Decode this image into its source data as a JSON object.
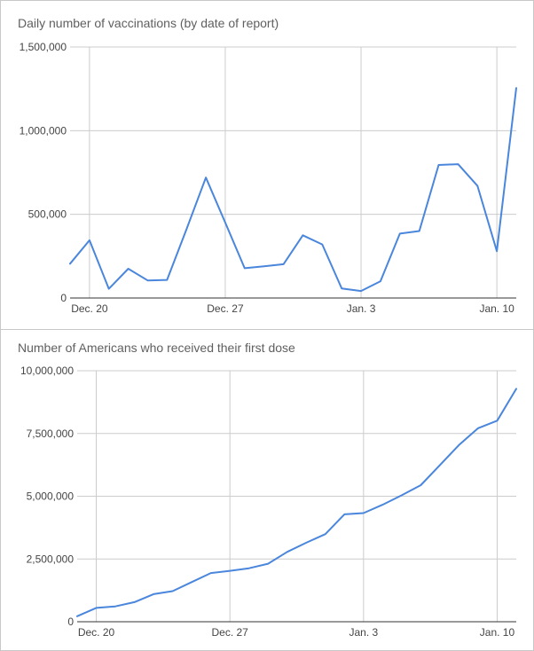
{
  "colors": {
    "series": "#4a86dc",
    "grid": "#cccccc",
    "baseline": "#333333"
  },
  "chart_data": [
    {
      "type": "line",
      "title": "Daily number of vaccinations (by date of report)",
      "xlabel": "",
      "ylabel": "",
      "x": [
        "Dec. 19",
        "Dec. 20",
        "Dec. 21",
        "Dec. 22",
        "Dec. 23",
        "Dec. 24",
        "Dec. 25",
        "Dec. 26",
        "Dec. 27",
        "Dec. 28",
        "Dec. 29",
        "Dec. 30",
        "Dec. 31",
        "Jan. 1",
        "Jan. 2",
        "Jan. 3",
        "Jan. 4",
        "Jan. 5",
        "Jan. 6",
        "Jan. 7",
        "Jan. 8",
        "Jan. 9",
        "Jan. 10",
        "Jan. 11"
      ],
      "y": [
        205000,
        345000,
        55000,
        175000,
        105000,
        108000,
        410000,
        720000,
        450000,
        178000,
        190000,
        202000,
        375000,
        320000,
        57000,
        42000,
        100000,
        385000,
        400000,
        795000,
        800000,
        670000,
        280000,
        1255000
      ],
      "x_ticks": [
        "Dec. 20",
        "Dec. 27",
        "Jan. 3",
        "Jan. 10"
      ],
      "y_ticks": [
        0,
        500000,
        1000000,
        1500000
      ],
      "y_tick_labels": [
        "0",
        "500,000",
        "1,000,000",
        "1,500,000"
      ],
      "ylim": [
        0,
        1500000
      ],
      "grid": true,
      "legend": "none"
    },
    {
      "type": "line",
      "title": "Number of Americans who received their first dose",
      "xlabel": "",
      "ylabel": "",
      "x": [
        "Dec. 19",
        "Dec. 20",
        "Dec. 21",
        "Dec. 22",
        "Dec. 23",
        "Dec. 24",
        "Dec. 25",
        "Dec. 26",
        "Dec. 27",
        "Dec. 28",
        "Dec. 29",
        "Dec. 30",
        "Dec. 31",
        "Jan. 1",
        "Jan. 2",
        "Jan. 3",
        "Jan. 4",
        "Jan. 5",
        "Jan. 6",
        "Jan. 7",
        "Jan. 8",
        "Jan. 9",
        "Jan. 10",
        "Jan. 11"
      ],
      "y": [
        220000,
        550000,
        610000,
        780000,
        1100000,
        1220000,
        1580000,
        1940000,
        2030000,
        2130000,
        2310000,
        2780000,
        3150000,
        3490000,
        4280000,
        4330000,
        4660000,
        5040000,
        5440000,
        6240000,
        7040000,
        7710000,
        8010000,
        9280000
      ],
      "x_ticks": [
        "Dec. 20",
        "Dec. 27",
        "Jan. 3",
        "Jan. 10"
      ],
      "y_ticks": [
        0,
        2500000,
        5000000,
        7500000,
        10000000
      ],
      "y_tick_labels": [
        "0",
        "2,500,000",
        "5,000,000",
        "7,500,000",
        "10,000,000"
      ],
      "ylim": [
        0,
        10000000
      ],
      "grid": true,
      "legend": "none"
    }
  ]
}
